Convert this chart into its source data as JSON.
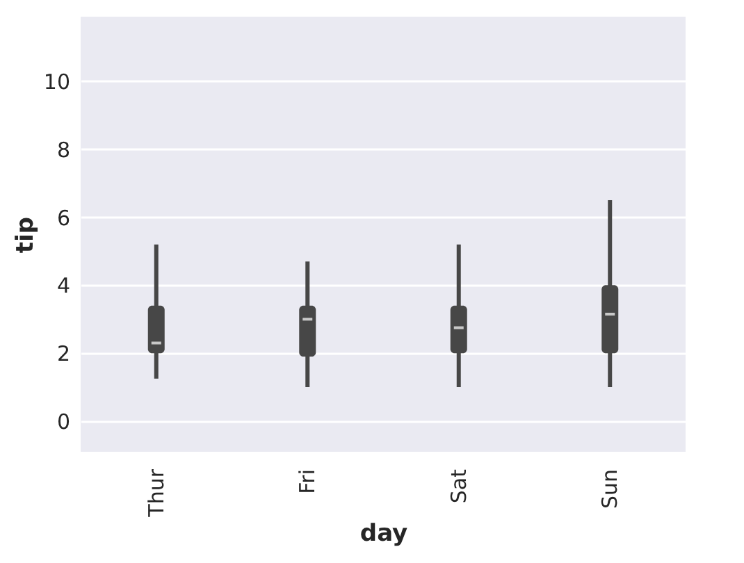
{
  "chart_data": {
    "type": "box",
    "xlabel": "day",
    "ylabel": "tip",
    "categories": [
      "Thur",
      "Fri",
      "Sat",
      "Sun"
    ],
    "series": [
      {
        "color": "#474747",
        "boxes": [
          {
            "low": 1.25,
            "q1": 2.0,
            "median": 2.3,
            "q3": 3.4,
            "high": 5.2
          },
          {
            "low": 1.0,
            "q1": 1.9,
            "median": 3.0,
            "q3": 3.4,
            "high": 4.7
          },
          {
            "low": 1.0,
            "q1": 2.0,
            "median": 2.75,
            "q3": 3.4,
            "high": 5.2
          },
          {
            "low": 1.0,
            "q1": 2.0,
            "median": 3.15,
            "q3": 4.0,
            "high": 6.5
          }
        ]
      }
    ],
    "ylim": [
      -0.9,
      11.9
    ],
    "yticks": [
      0,
      2,
      4,
      6,
      8,
      10
    ],
    "grid": "y"
  }
}
